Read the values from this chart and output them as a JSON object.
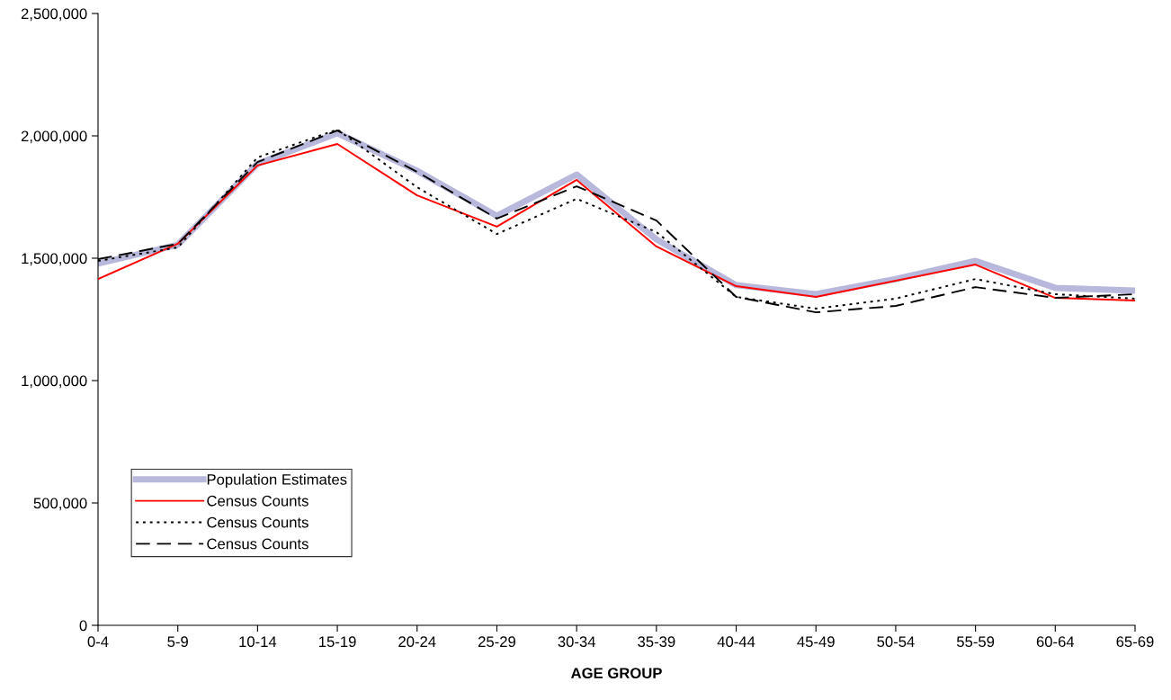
{
  "chart_data": {
    "type": "line",
    "xlabel": "AGE GROUP",
    "categories": [
      "0-4",
      "5-9",
      "10-14",
      "15-19",
      "20-24",
      "25-29",
      "30-34",
      "35-39",
      "40-44",
      "45-49",
      "50-54",
      "55-59",
      "60-64",
      "65-69"
    ],
    "series": [
      {
        "name": "Population Estimates",
        "color": "#b8b8dc",
        "line_style": "solid",
        "values": [
          1478000,
          1555000,
          1886000,
          2011000,
          1857000,
          1673000,
          1842000,
          1577000,
          1390000,
          1353000,
          1415000,
          1489000,
          1379000,
          1368000
        ]
      },
      {
        "name": "Census Counts",
        "color": "#ff0000",
        "line_style": "solid",
        "values": [
          1415000,
          1559000,
          1879000,
          1967000,
          1757000,
          1629000,
          1820000,
          1548000,
          1386000,
          1342000,
          1408000,
          1474000,
          1338000,
          1327000
        ]
      },
      {
        "name": "Census Counts",
        "color": "#000000",
        "line_style": "dotted",
        "values": [
          1489000,
          1544000,
          1912000,
          2026000,
          1790000,
          1599000,
          1743000,
          1607000,
          1342000,
          1294000,
          1335000,
          1415000,
          1353000,
          1335000
        ]
      },
      {
        "name": "Census Counts",
        "color": "#000000",
        "line_style": "dashed",
        "values": [
          1496000,
          1559000,
          1893000,
          2022000,
          1853000,
          1662000,
          1794000,
          1654000,
          1342000,
          1279000,
          1305000,
          1382000,
          1338000,
          1353000
        ]
      }
    ],
    "ylim": [
      0,
      2500000
    ],
    "yticks": [
      {
        "value": 0,
        "label": "0"
      },
      {
        "value": 500000,
        "label": "500,000"
      },
      {
        "value": 1000000,
        "label": "1,000,000"
      },
      {
        "value": 1500000,
        "label": "1,500,000"
      },
      {
        "value": 2000000,
        "label": "2,000,000"
      },
      {
        "value": 2500000,
        "label": "2,500,000"
      }
    ],
    "grid": false,
    "legend": "bottom left",
    "marker": "none"
  }
}
